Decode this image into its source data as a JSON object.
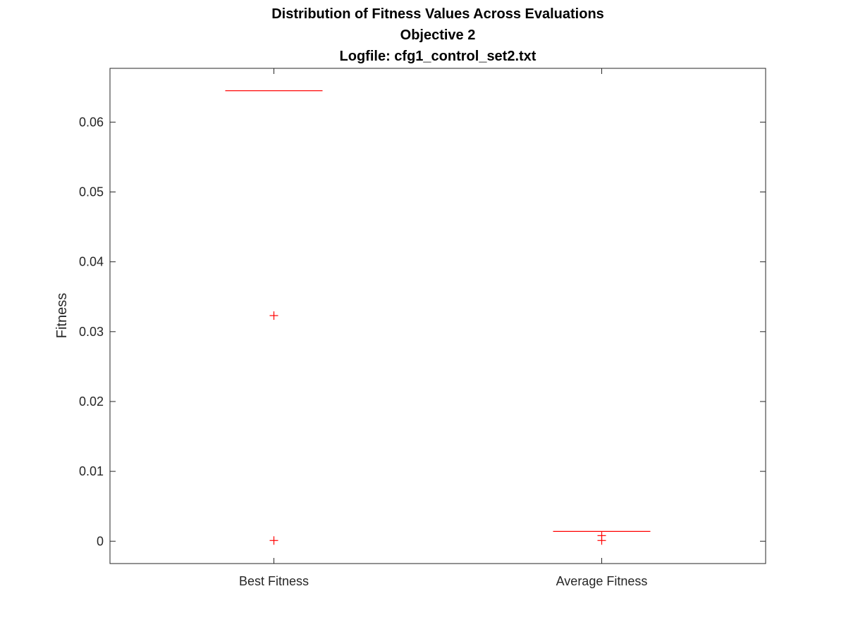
{
  "chart_data": {
    "type": "box",
    "title_lines": [
      "Distribution of Fitness Values Across Evaluations",
      "Objective 2",
      "Logfile: cfg1_control_set2.txt"
    ],
    "xlabel": "",
    "ylabel": "Fitness",
    "ylim": [
      -0.0032,
      0.0677
    ],
    "yticks": [
      0,
      0.01,
      0.02,
      0.03,
      0.04,
      0.05,
      0.06
    ],
    "ytick_labels": [
      "0",
      "0.01",
      "0.02",
      "0.03",
      "0.04",
      "0.05",
      "0.06"
    ],
    "categories": [
      "Best Fitness",
      "Average Fitness"
    ],
    "grid": false,
    "color": "#ff0000",
    "boxes": [
      {
        "category": "Best Fitness",
        "median": 0.0645,
        "outliers": [
          0.0323,
          0.0001
        ]
      },
      {
        "category": "Average Fitness",
        "median": 0.0014,
        "outliers": [
          0.0008,
          0.0001
        ]
      }
    ]
  }
}
